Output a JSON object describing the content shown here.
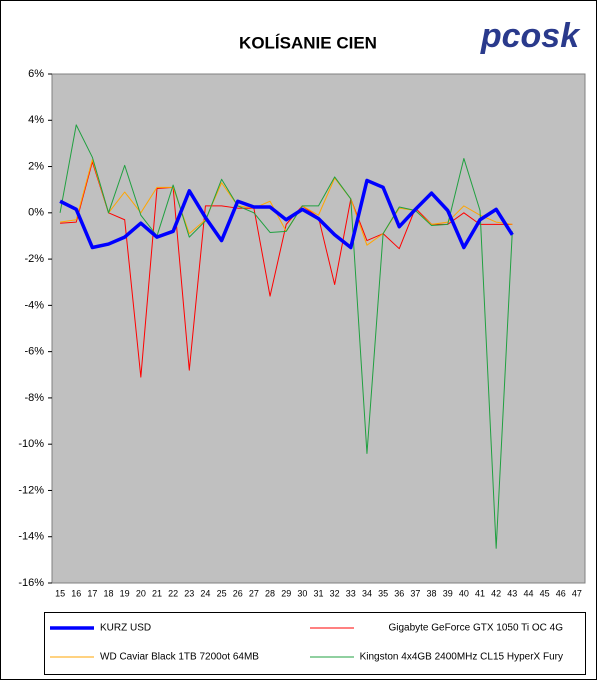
{
  "chart_data": {
    "type": "line",
    "title": "KOLÍSANIE CIEN",
    "logo": "pcosk",
    "categories": [
      "15",
      "16",
      "17",
      "18",
      "19",
      "20",
      "21",
      "22",
      "23",
      "24",
      "25",
      "26",
      "27",
      "28",
      "29",
      "30",
      "31",
      "32",
      "33",
      "34",
      "35",
      "36",
      "37",
      "38",
      "39",
      "40",
      "41",
      "42",
      "43",
      "44",
      "45",
      "46",
      "47"
    ],
    "series": [
      {
        "name": "KURZ USD",
        "color": "#0000ff",
        "width": 3.5,
        "values": [
          0.5,
          0.15,
          -1.5,
          -1.35,
          -1.05,
          -0.45,
          -1.05,
          -0.8,
          0.95,
          -0.2,
          -1.2,
          0.5,
          0.25,
          0.25,
          -0.3,
          0.15,
          -0.25,
          -0.95,
          -1.5,
          1.4,
          1.1,
          -0.6,
          0.15,
          0.85,
          0.1,
          -1.5,
          -0.3,
          0.15,
          -0.95,
          null,
          null,
          null,
          null
        ]
      },
      {
        "name": "Gigabyte GeForce GTX 1050 Ti OC 4G",
        "color": "#ff0000",
        "width": 1,
        "values": [
          -0.45,
          -0.4,
          2.2,
          0,
          -0.3,
          -7.1,
          1.05,
          1.1,
          -6.8,
          0.3,
          0.3,
          0.2,
          0.2,
          -3.6,
          -0.5,
          0.3,
          -0.2,
          -3.1,
          0.6,
          -1.2,
          -0.9,
          -1.55,
          0.2,
          -0.5,
          -0.5,
          0,
          -0.5,
          -0.5,
          -0.5,
          null,
          null,
          null,
          null
        ]
      },
      {
        "name": "WD Caviar Black 1TB 7200ot 64MB",
        "color": "#ffa500",
        "width": 1,
        "values": [
          -0.4,
          -0.3,
          2.3,
          0,
          0.9,
          0,
          1.1,
          1.1,
          -0.9,
          -0.3,
          1.3,
          0.3,
          0.2,
          0.5,
          -0.8,
          0.3,
          -0.1,
          1.5,
          0.6,
          -1.4,
          -0.9,
          0.2,
          0.1,
          -0.5,
          -0.4,
          0.3,
          -0.1,
          -0.4,
          -0.5,
          null,
          null,
          null,
          null
        ]
      },
      {
        "name": "Kingston 4x4GB 2400MHz CL15 HyperX Fury",
        "color": "#20a040",
        "width": 1,
        "values": [
          0,
          3.8,
          2.4,
          0,
          2.05,
          -0.1,
          -1,
          1.2,
          -1.05,
          -0.35,
          1.45,
          0.3,
          0,
          -0.85,
          -0.8,
          0.3,
          0.3,
          1.55,
          0.6,
          -10.4,
          -0.9,
          0.25,
          0.1,
          -0.55,
          -0.5,
          2.35,
          0.1,
          -14.5,
          -0.8,
          null,
          null,
          null,
          null
        ]
      }
    ],
    "ylim": [
      -16,
      6
    ],
    "yticks": [
      {
        "value": -16,
        "label": "-16%"
      },
      {
        "value": -14,
        "label": "-14%"
      },
      {
        "value": -12,
        "label": "-12%"
      },
      {
        "value": -10,
        "label": "-10%"
      },
      {
        "value": -8,
        "label": "-8%"
      },
      {
        "value": -6,
        "label": "-6%"
      },
      {
        "value": -4,
        "label": "-4%"
      },
      {
        "value": -2,
        "label": "-2%"
      },
      {
        "value": 0,
        "label": "0%"
      },
      {
        "value": 2,
        "label": "2%"
      },
      {
        "value": 4,
        "label": "4%"
      },
      {
        "value": 6,
        "label": "6%"
      }
    ],
    "grid": false,
    "plot_background": "#c0c0c0"
  }
}
